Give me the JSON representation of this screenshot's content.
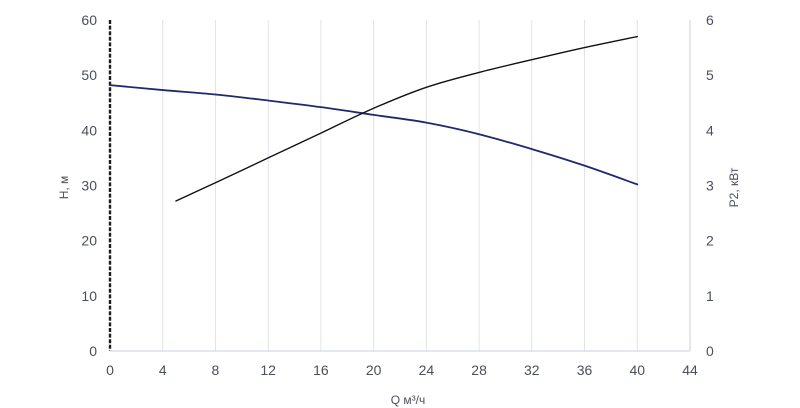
{
  "chart_data": {
    "type": "line",
    "title": "",
    "xlabel": "Q м³/ч",
    "ylabel_left": "H, м",
    "ylabel_right": "P2, кВт",
    "xlim": [
      0,
      44
    ],
    "ylim_left": [
      0,
      60
    ],
    "ylim_right": [
      0,
      6
    ],
    "x_ticks": [
      "0",
      "4",
      "8",
      "12",
      "16",
      "20",
      "24",
      "28",
      "32",
      "36",
      "40",
      "44"
    ],
    "y_ticks_left": [
      "0",
      "10",
      "20",
      "30",
      "40",
      "50",
      "60"
    ],
    "y_ticks_right": [
      "0",
      "1",
      "2",
      "3",
      "4",
      "5",
      "6"
    ],
    "grid": "vertical",
    "series": [
      {
        "axis": "left",
        "color": "#1f2a6b",
        "x": [
          0,
          4,
          8,
          12,
          16,
          20,
          24,
          28,
          32,
          36,
          40
        ],
        "y": [
          48.2,
          47.3,
          46.5,
          45.4,
          44.2,
          42.8,
          41.4,
          39.3,
          36.6,
          33.6,
          30.2
        ]
      },
      {
        "axis": "right",
        "color": "#111111",
        "x": [
          5,
          8,
          12,
          16,
          20,
          24,
          28,
          32,
          36,
          40
        ],
        "y": [
          2.72,
          3.05,
          3.5,
          3.95,
          4.4,
          4.78,
          5.05,
          5.28,
          5.5,
          5.7
        ]
      }
    ]
  }
}
